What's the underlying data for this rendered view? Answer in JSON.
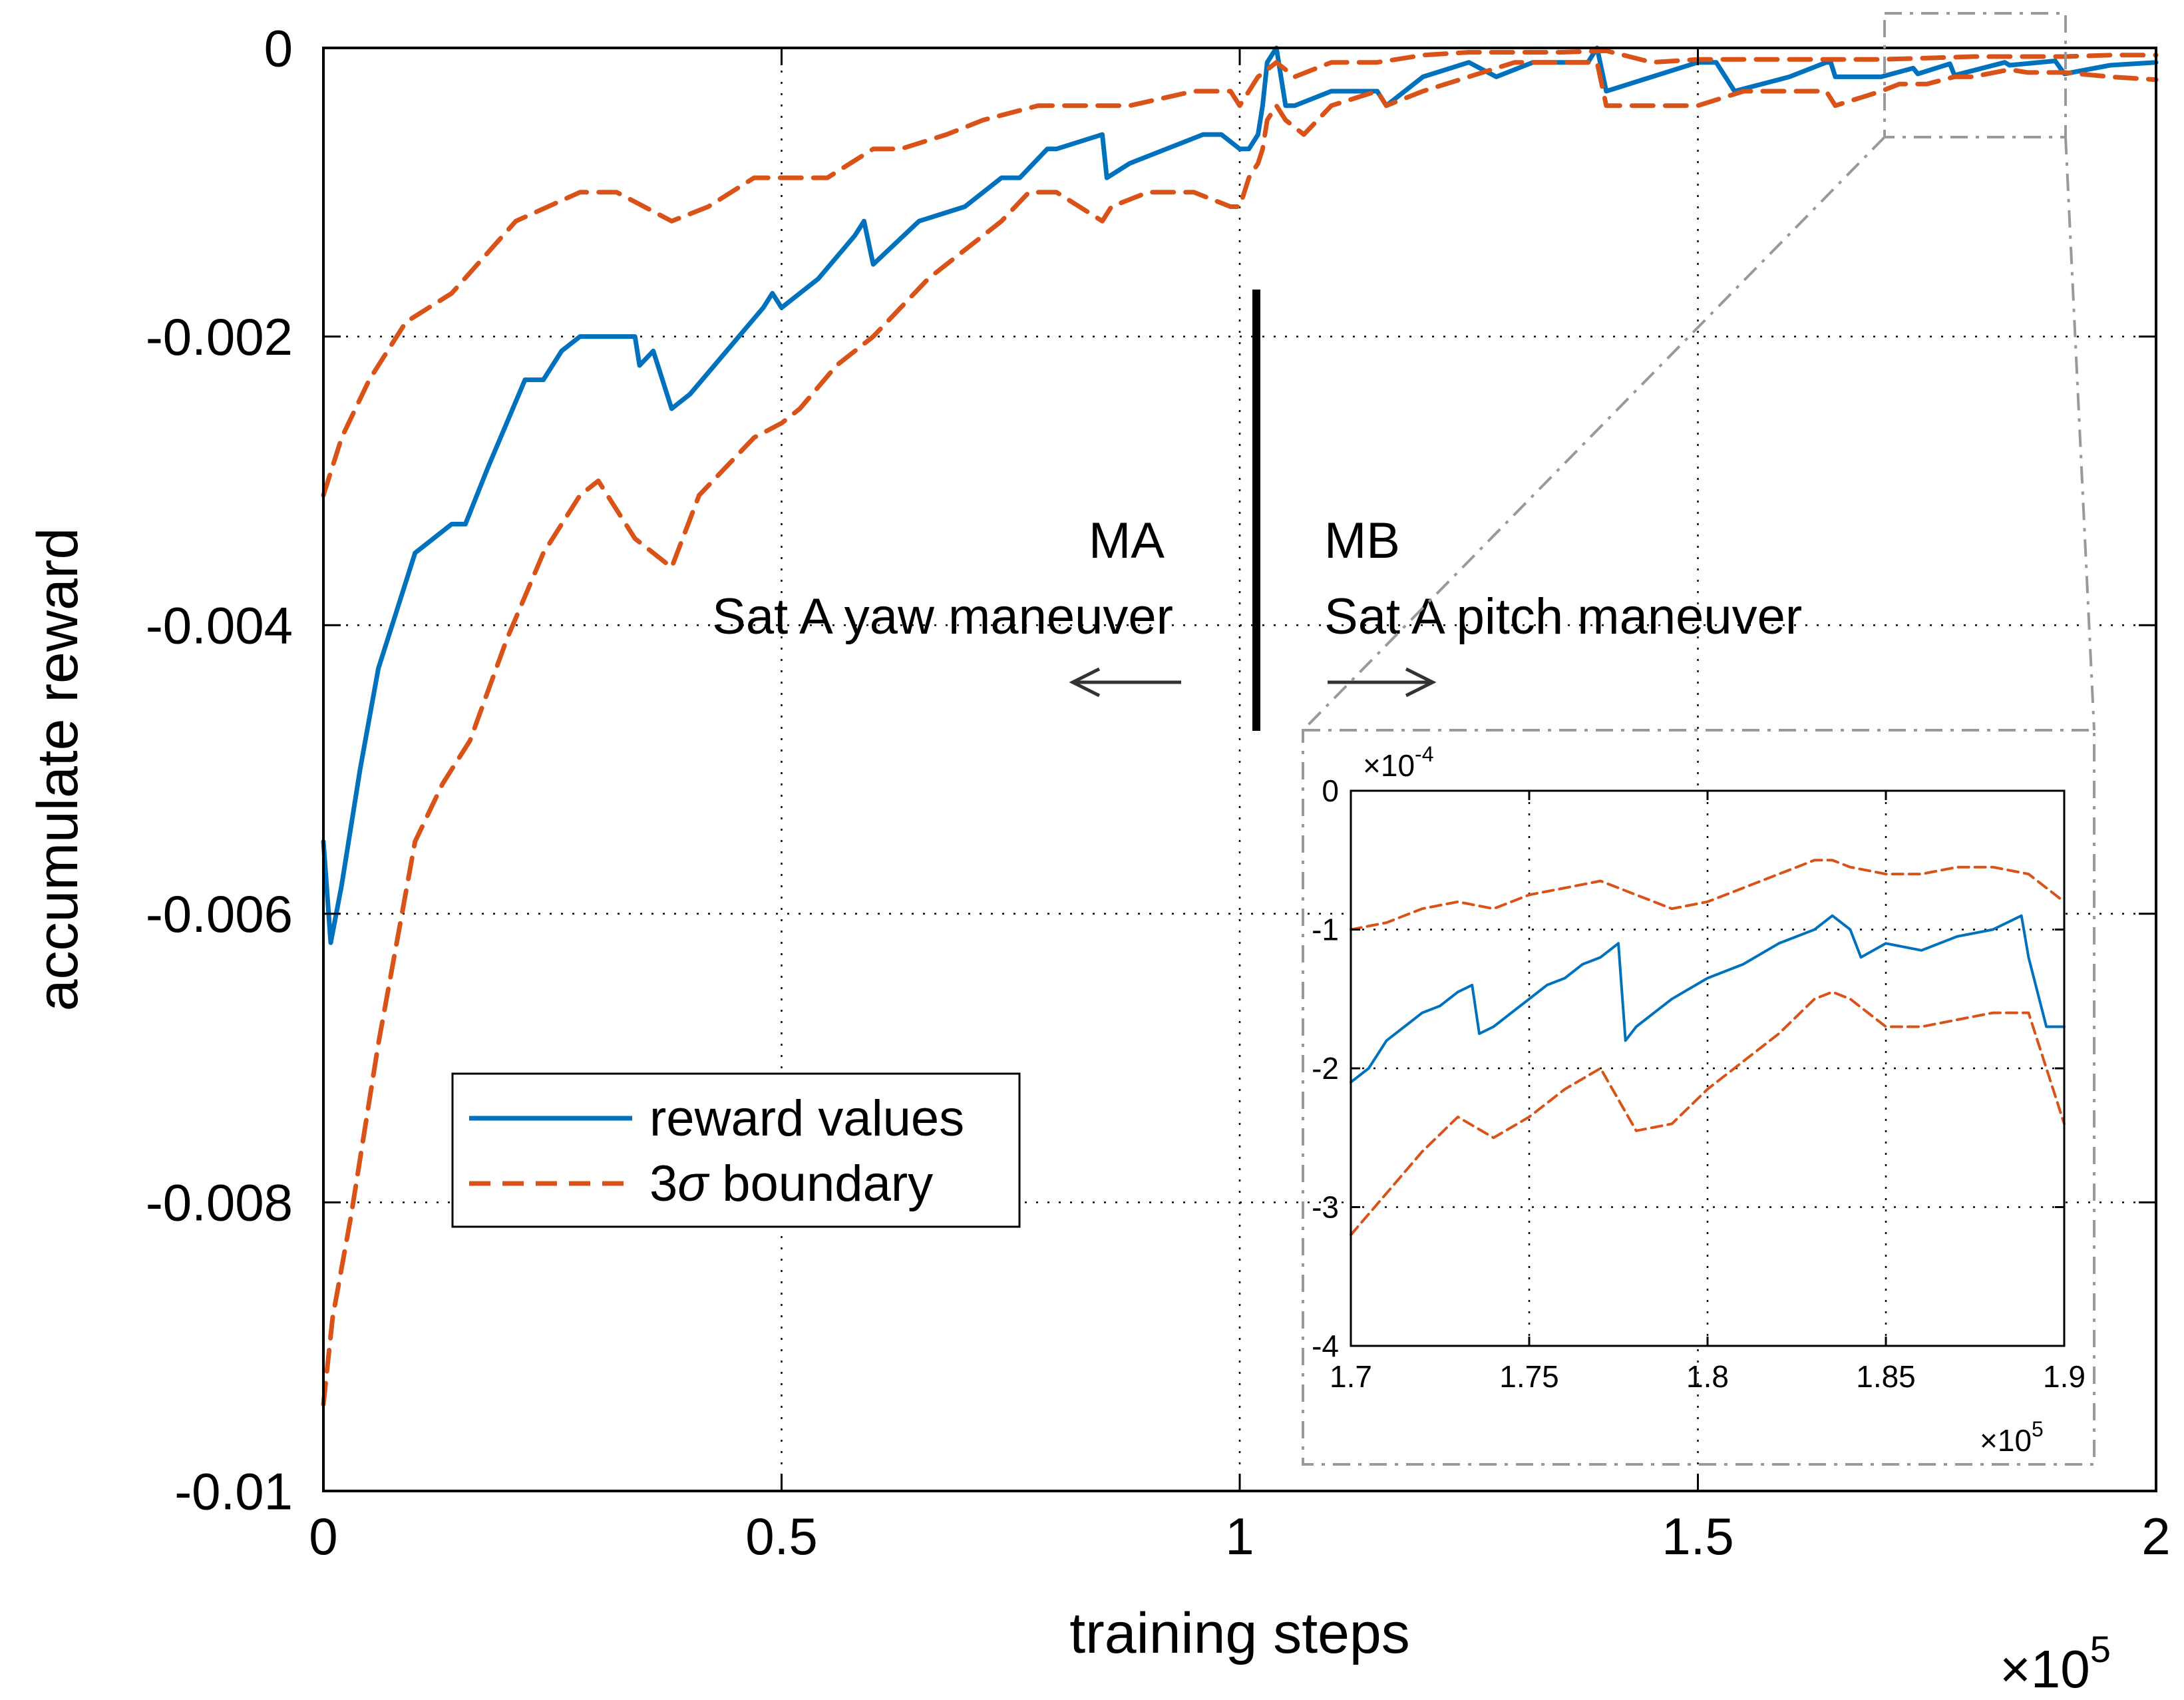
{
  "chart_data": {
    "type": "line",
    "xlabel": "training steps",
    "ylabel": "accumulate reward",
    "x_multiplier_label": "×10",
    "x_multiplier_exp": "5",
    "xlim": [
      0,
      2
    ],
    "ylim": [
      -0.01,
      0
    ],
    "x_ticks": [
      0,
      0.5,
      1,
      1.5,
      2
    ],
    "x_tick_labels": [
      "0",
      "0.5",
      "1",
      "1.5",
      "2"
    ],
    "y_ticks": [
      0,
      -0.002,
      -0.004,
      -0.006,
      -0.008,
      -0.01
    ],
    "y_tick_labels": [
      "0",
      "-0.002",
      "-0.004",
      "-0.006",
      "-0.008",
      "-0.01"
    ],
    "grid": "dotted",
    "legend": {
      "position": "lower-left",
      "entries": [
        {
          "label": "reward values",
          "style": "solid",
          "color": "#0072BD"
        },
        {
          "label": "3σ boundary",
          "label_prefix": "3",
          "label_symbol": "σ",
          "label_suffix": " boundary",
          "style": "dashed",
          "color": "#D95319"
        }
      ]
    },
    "annotations": {
      "divider_x": 1.02,
      "left_title": "MA",
      "left_subtitle": "Sat A yaw maneuver",
      "right_title": "MB",
      "right_subtitle": "Sat A pitch maneuver"
    },
    "series": [
      {
        "name": "reward values",
        "color": "#0072BD",
        "style": "solid",
        "x": [
          0,
          0.008,
          0.02,
          0.04,
          0.06,
          0.08,
          0.1,
          0.12,
          0.14,
          0.155,
          0.18,
          0.2,
          0.22,
          0.24,
          0.26,
          0.28,
          0.3,
          0.32,
          0.34,
          0.345,
          0.36,
          0.38,
          0.4,
          0.44,
          0.48,
          0.49,
          0.5,
          0.54,
          0.58,
          0.59,
          0.6,
          0.65,
          0.7,
          0.74,
          0.76,
          0.79,
          0.8,
          0.85,
          0.855,
          0.88,
          0.92,
          0.96,
          0.98,
          1.0,
          1.01,
          1.02,
          1.025,
          1.03,
          1.04,
          1.05,
          1.06,
          1.1,
          1.15,
          1.16,
          1.2,
          1.25,
          1.28,
          1.32,
          1.36,
          1.38,
          1.39,
          1.4,
          1.45,
          1.5,
          1.52,
          1.54,
          1.6,
          1.64,
          1.645,
          1.65,
          1.7,
          1.735,
          1.74,
          1.775,
          1.78,
          1.835,
          1.84,
          1.89,
          1.9,
          1.95,
          2.0
        ],
        "y": [
          -0.0055,
          -0.0062,
          -0.0058,
          -0.005,
          -0.0043,
          -0.0039,
          -0.0035,
          -0.0034,
          -0.0033,
          -0.0033,
          -0.0029,
          -0.0026,
          -0.0023,
          -0.0023,
          -0.0021,
          -0.002,
          -0.002,
          -0.002,
          -0.002,
          -0.0022,
          -0.0021,
          -0.0025,
          -0.0024,
          -0.0021,
          -0.0018,
          -0.0017,
          -0.0018,
          -0.0016,
          -0.0013,
          -0.0012,
          -0.0015,
          -0.0012,
          -0.0011,
          -0.0009,
          -0.0009,
          -0.0007,
          -0.0007,
          -0.0006,
          -0.0009,
          -0.0008,
          -0.0007,
          -0.0006,
          -0.0006,
          -0.0007,
          -0.0007,
          -0.0006,
          -0.0004,
          -0.0001,
          0.0,
          -0.0004,
          -0.0004,
          -0.0003,
          -0.0003,
          -0.0004,
          -0.0002,
          -0.0001,
          -0.0002,
          -0.0001,
          -0.0001,
          -0.0001,
          0.0,
          -0.0003,
          -0.0002,
          -0.0001,
          -0.0001,
          -0.0003,
          -0.0002,
          -0.0001,
          -0.0001,
          -0.0002,
          -0.0002,
          -0.00014,
          -0.00018,
          -0.00011,
          -0.00019,
          -0.0001,
          -0.00012,
          -9e-05,
          -0.00018,
          -0.00012,
          -0.0001
        ]
      },
      {
        "name": "3σ upper boundary",
        "color": "#D95319",
        "style": "dashed",
        "x": [
          0,
          0.02,
          0.05,
          0.09,
          0.14,
          0.21,
          0.28,
          0.32,
          0.35,
          0.38,
          0.42,
          0.47,
          0.52,
          0.55,
          0.6,
          0.63,
          0.68,
          0.72,
          0.78,
          0.8,
          0.85,
          0.88,
          0.95,
          0.99,
          1.0,
          1.02,
          1.04,
          1.06,
          1.1,
          1.15,
          1.2,
          1.25,
          1.3,
          1.35,
          1.4,
          1.45,
          1.5,
          1.55,
          1.6,
          1.65,
          1.7,
          1.75,
          1.8,
          1.85,
          1.9,
          1.95,
          2.0
        ],
        "y": [
          -0.0031,
          -0.0027,
          -0.0023,
          -0.0019,
          -0.0017,
          -0.0012,
          -0.001,
          -0.001,
          -0.0011,
          -0.0012,
          -0.0011,
          -0.0009,
          -0.0009,
          -0.0009,
          -0.0007,
          -0.0007,
          -0.0006,
          -0.0005,
          -0.0004,
          -0.0004,
          -0.0004,
          -0.0004,
          -0.0003,
          -0.0003,
          -0.0004,
          -0.0002,
          -0.0001,
          -0.0002,
          -0.0001,
          -0.0001,
          -5e-05,
          -3e-05,
          -3e-05,
          -3e-05,
          -2e-05,
          -0.0001,
          -8e-05,
          -8e-05,
          -8e-05,
          -8e-05,
          -8e-05,
          -7e-05,
          -6e-05,
          -6e-05,
          -6e-05,
          -5e-05,
          -5e-05
        ]
      },
      {
        "name": "3σ lower boundary",
        "color": "#D95319",
        "style": "dashed",
        "x": [
          0,
          0.01,
          0.03,
          0.06,
          0.08,
          0.1,
          0.13,
          0.16,
          0.2,
          0.24,
          0.28,
          0.3,
          0.32,
          0.34,
          0.38,
          0.41,
          0.44,
          0.47,
          0.5,
          0.52,
          0.56,
          0.6,
          0.63,
          0.66,
          0.7,
          0.74,
          0.77,
          0.8,
          0.85,
          0.86,
          0.9,
          0.95,
          0.99,
          1.0,
          1.01,
          1.02,
          1.025,
          1.03,
          1.04,
          1.05,
          1.07,
          1.1,
          1.15,
          1.16,
          1.2,
          1.25,
          1.3,
          1.35,
          1.39,
          1.4,
          1.45,
          1.5,
          1.55,
          1.6,
          1.64,
          1.65,
          1.7,
          1.72,
          1.75,
          1.78,
          1.8,
          1.84,
          1.86,
          1.9,
          1.95,
          2.0
        ],
        "y": [
          -0.0094,
          -0.0088,
          -0.0081,
          -0.0069,
          -0.0062,
          -0.0055,
          -0.0051,
          -0.0048,
          -0.0041,
          -0.0035,
          -0.0031,
          -0.003,
          -0.0032,
          -0.0034,
          -0.0036,
          -0.0031,
          -0.0029,
          -0.0027,
          -0.0026,
          -0.0025,
          -0.0022,
          -0.002,
          -0.0018,
          -0.0016,
          -0.0014,
          -0.0012,
          -0.001,
          -0.001,
          -0.0012,
          -0.0011,
          -0.001,
          -0.001,
          -0.0011,
          -0.0011,
          -0.0009,
          -0.0008,
          -0.0007,
          -0.0005,
          -0.0004,
          -0.0005,
          -0.0006,
          -0.0004,
          -0.0003,
          -0.0004,
          -0.0003,
          -0.0002,
          -0.0001,
          -0.0001,
          -0.0001,
          -0.0004,
          -0.0004,
          -0.0004,
          -0.0003,
          -0.0003,
          -0.0003,
          -0.0004,
          -0.0003,
          -0.00025,
          -0.00025,
          -0.0002,
          -0.0002,
          -0.00015,
          -0.00017,
          -0.00017,
          -0.0002,
          -0.00022
        ]
      }
    ],
    "inset": {
      "xlim": [
        1.7,
        1.9
      ],
      "ylim": [
        -4,
        0
      ],
      "x_ticks": [
        1.7,
        1.75,
        1.8,
        1.85,
        1.9
      ],
      "x_tick_labels": [
        "1.7",
        "1.75",
        "1.8",
        "1.85",
        "1.9"
      ],
      "y_ticks": [
        0,
        -1,
        -2,
        -3,
        -4
      ],
      "y_tick_labels": [
        "0",
        "-1",
        "-2",
        "-3",
        "-4"
      ],
      "y_multiplier_label": "×10",
      "y_multiplier_exp": "-4",
      "x_multiplier_label": "×10",
      "x_multiplier_exp": "5",
      "series": [
        {
          "name": "reward values",
          "color": "#0072BD",
          "style": "solid",
          "x": [
            1.7,
            1.705,
            1.71,
            1.715,
            1.72,
            1.725,
            1.73,
            1.734,
            1.736,
            1.74,
            1.745,
            1.75,
            1.755,
            1.76,
            1.765,
            1.77,
            1.775,
            1.777,
            1.78,
            1.785,
            1.79,
            1.8,
            1.81,
            1.82,
            1.83,
            1.835,
            1.84,
            1.843,
            1.85,
            1.86,
            1.87,
            1.88,
            1.888,
            1.89,
            1.895,
            1.9
          ],
          "y": [
            -2.1,
            -2.0,
            -1.8,
            -1.7,
            -1.6,
            -1.55,
            -1.45,
            -1.4,
            -1.75,
            -1.7,
            -1.6,
            -1.5,
            -1.4,
            -1.35,
            -1.25,
            -1.2,
            -1.1,
            -1.8,
            -1.7,
            -1.6,
            -1.5,
            -1.35,
            -1.25,
            -1.1,
            -1.0,
            -0.9,
            -1.0,
            -1.2,
            -1.1,
            -1.15,
            -1.05,
            -1.0,
            -0.9,
            -1.2,
            -1.7,
            -1.7
          ]
        },
        {
          "name": "3σ upper boundary",
          "color": "#D95319",
          "style": "dashed",
          "x": [
            1.7,
            1.71,
            1.72,
            1.73,
            1.74,
            1.75,
            1.76,
            1.77,
            1.78,
            1.79,
            1.8,
            1.81,
            1.82,
            1.83,
            1.835,
            1.84,
            1.85,
            1.86,
            1.87,
            1.88,
            1.89,
            1.9
          ],
          "y": [
            -1.0,
            -0.95,
            -0.85,
            -0.8,
            -0.85,
            -0.75,
            -0.7,
            -0.65,
            -0.75,
            -0.85,
            -0.8,
            -0.7,
            -0.6,
            -0.5,
            -0.5,
            -0.55,
            -0.6,
            -0.6,
            -0.55,
            -0.55,
            -0.6,
            -0.8
          ]
        },
        {
          "name": "3σ lower boundary",
          "color": "#D95319",
          "style": "dashed",
          "x": [
            1.7,
            1.71,
            1.72,
            1.73,
            1.74,
            1.75,
            1.76,
            1.77,
            1.78,
            1.79,
            1.8,
            1.81,
            1.82,
            1.83,
            1.835,
            1.84,
            1.85,
            1.86,
            1.87,
            1.88,
            1.89,
            1.9
          ],
          "y": [
            -3.2,
            -2.9,
            -2.6,
            -2.35,
            -2.5,
            -2.35,
            -2.15,
            -2.0,
            -2.45,
            -2.4,
            -2.15,
            -1.95,
            -1.75,
            -1.5,
            -1.45,
            -1.5,
            -1.7,
            -1.7,
            -1.65,
            -1.6,
            -1.6,
            -2.4
          ]
        }
      ]
    }
  }
}
